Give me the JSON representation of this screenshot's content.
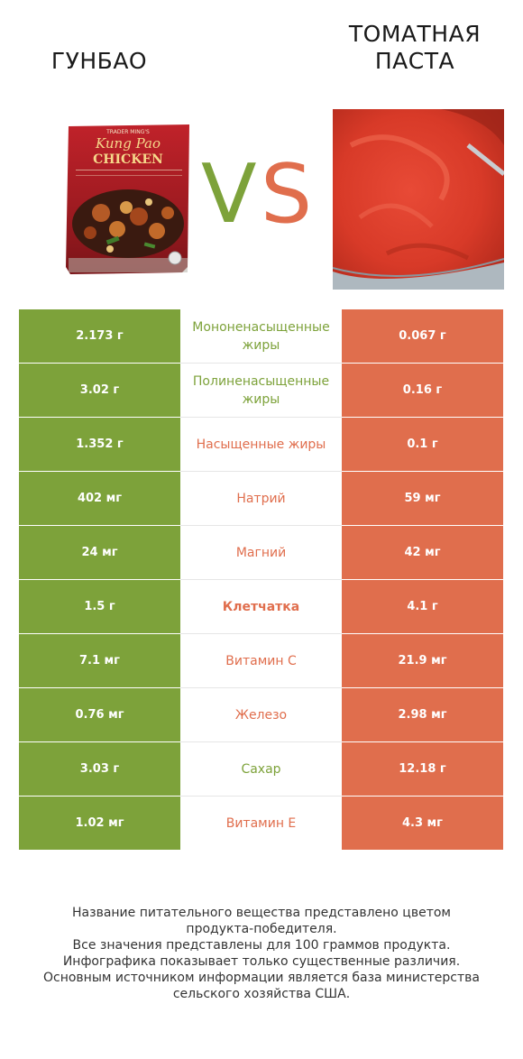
{
  "header": {
    "left_title": "ГУНБАО",
    "right_title_line1": "ТОМАТНАЯ",
    "right_title_line2": "ПАСТА",
    "vs_v": "V",
    "vs_s": "S"
  },
  "product_images": {
    "left": {
      "icon": "kung-pao-package-image",
      "brand_text": "TRADER MING'S",
      "name_line1": "Kung Pao",
      "name_line2": "CHICKEN"
    },
    "right": {
      "icon": "tomato-paste-bowl-image"
    }
  },
  "colors": {
    "left_winner": "#7da23a",
    "right_winner": "#e06e4d",
    "left_cell_bg": "#7da23a",
    "right_cell_bg": "#e06e4d"
  },
  "rows": [
    {
      "left": "2.173 г",
      "name": "Мононенасыщенные жиры",
      "right": "0.067 г",
      "winner": "left"
    },
    {
      "left": "3.02 г",
      "name": "Полиненасыщенные жиры",
      "right": "0.16 г",
      "winner": "left"
    },
    {
      "left": "1.352 г",
      "name": "Насыщенные жиры",
      "right": "0.1 г",
      "winner": "right"
    },
    {
      "left": "402 мг",
      "name": "Натрий",
      "right": "59 мг",
      "winner": "right"
    },
    {
      "left": "24 мг",
      "name": "Магний",
      "right": "42 мг",
      "winner": "right"
    },
    {
      "left": "1.5 г",
      "name": "Клетчатка",
      "right": "4.1 г",
      "winner": "right"
    },
    {
      "left": "7.1 мг",
      "name": "Витамин C",
      "right": "21.9 мг",
      "winner": "right"
    },
    {
      "left": "0.76 мг",
      "name": "Железо",
      "right": "2.98 мг",
      "winner": "right"
    },
    {
      "left": "3.03 г",
      "name": "Сахар",
      "right": "12.18 г",
      "winner": "left"
    },
    {
      "left": "1.02 мг",
      "name": "Витамин E",
      "right": "4.3 мг",
      "winner": "right"
    }
  ],
  "footnote": {
    "line1": "Название питательного вещества представлено цветом",
    "line2": "продукта-победителя.",
    "line3": "Все значения представлены для 100 граммов продукта.",
    "line4": "Инфографика показывает только существенные различия.",
    "line5": "Основным источником информации является база министерства",
    "line6": "сельского хозяйства США."
  }
}
